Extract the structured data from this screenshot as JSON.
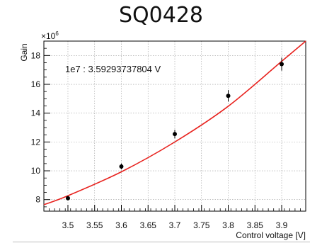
{
  "chart_data": {
    "type": "scatter",
    "title": "SQ0428",
    "xlabel": "Control voltage [V]",
    "ylabel": "Gain",
    "y_exponent_label": "×10^6",
    "annotation": "1e7 : 3.59293737804 V",
    "xlim": [
      3.455,
      3.945
    ],
    "ylim": [
      7.2,
      19.0
    ],
    "x_ticks": [
      3.5,
      3.55,
      3.6,
      3.65,
      3.7,
      3.75,
      3.8,
      3.85,
      3.9
    ],
    "y_ticks": [
      8,
      10,
      12,
      14,
      16,
      18
    ],
    "grid": true,
    "points": [
      {
        "x": 3.5,
        "y": 8.1,
        "err": 0.15
      },
      {
        "x": 3.6,
        "y": 10.3,
        "err": 0.2
      },
      {
        "x": 3.7,
        "y": 12.55,
        "err": 0.3
      },
      {
        "x": 3.8,
        "y": 15.2,
        "err": 0.4
      },
      {
        "x": 3.9,
        "y": 17.4,
        "err": 0.45
      }
    ],
    "fit": {
      "type": "exponential",
      "color": "#e8231f",
      "points": [
        {
          "x": 3.455,
          "y": 7.65
        },
        {
          "x": 3.5,
          "y": 8.27
        },
        {
          "x": 3.6,
          "y": 9.93
        },
        {
          "x": 3.7,
          "y": 12.0
        },
        {
          "x": 3.8,
          "y": 14.48
        },
        {
          "x": 3.9,
          "y": 17.6
        },
        {
          "x": 3.945,
          "y": 19.0
        }
      ]
    },
    "marker_color": "#000000"
  }
}
